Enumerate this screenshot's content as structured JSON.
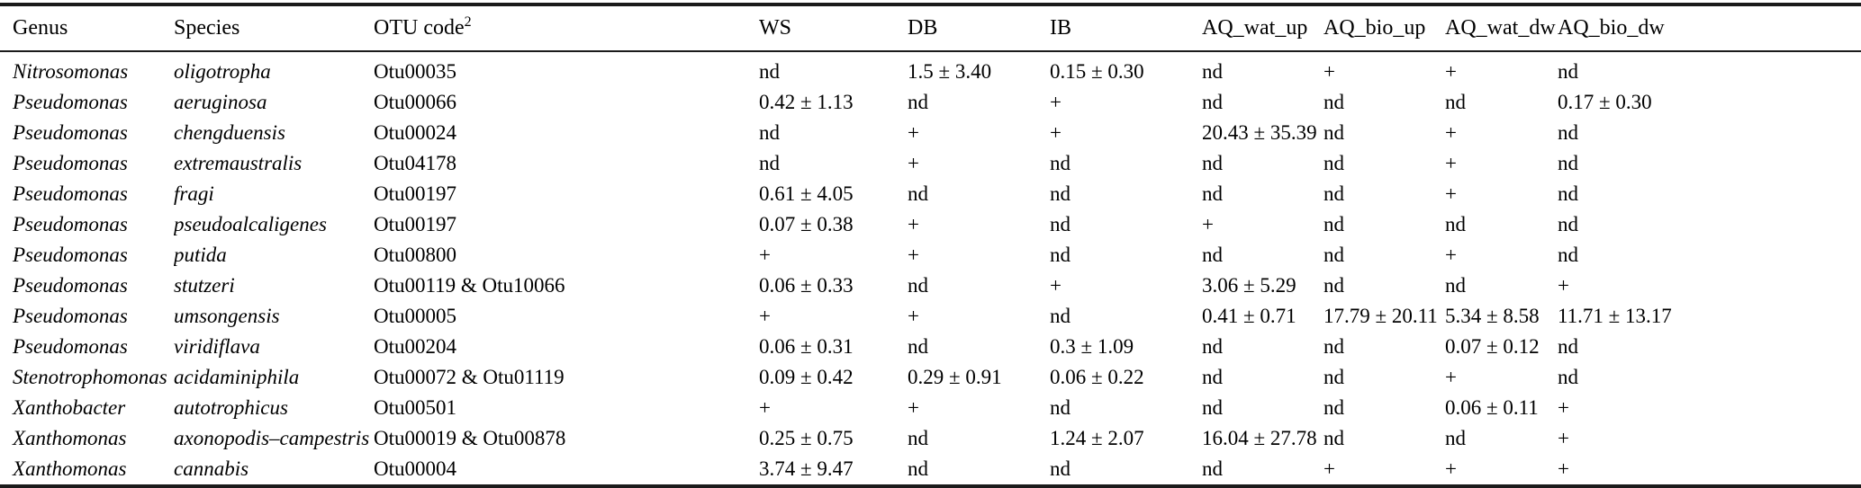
{
  "table": {
    "columns": [
      {
        "key": "genus",
        "label": "Genus",
        "sup": "",
        "italic": true
      },
      {
        "key": "species",
        "label": "Species",
        "sup": "",
        "italic": true
      },
      {
        "key": "otu",
        "label": "OTU code",
        "sup": "2",
        "italic": false
      },
      {
        "key": "ws",
        "label": "WS",
        "sup": "",
        "italic": false
      },
      {
        "key": "db",
        "label": "DB",
        "sup": "",
        "italic": false
      },
      {
        "key": "ib",
        "label": "IB",
        "sup": "",
        "italic": false
      },
      {
        "key": "aq_wat_up",
        "label": "AQ_wat_up",
        "sup": "",
        "italic": false
      },
      {
        "key": "aq_bio_up",
        "label": "AQ_bio_up",
        "sup": "",
        "italic": false
      },
      {
        "key": "aq_wat_dw",
        "label": "AQ_wat_dw",
        "sup": "",
        "italic": false
      },
      {
        "key": "aq_bio_dw",
        "label": "AQ_bio_dw",
        "sup": "",
        "italic": false
      }
    ],
    "rows": [
      {
        "genus": "Nitrosomonas",
        "species": "oligotropha",
        "otu": "Otu00035",
        "ws": "nd",
        "db": "1.5 ± 3.40",
        "ib": "0.15 ± 0.30",
        "aq_wat_up": "nd",
        "aq_bio_up": "+",
        "aq_wat_dw": "+",
        "aq_bio_dw": "nd"
      },
      {
        "genus": "Pseudomonas",
        "species": "aeruginosa",
        "otu": "Otu00066",
        "ws": "0.42 ± 1.13",
        "db": "nd",
        "ib": "+",
        "aq_wat_up": "nd",
        "aq_bio_up": "nd",
        "aq_wat_dw": "nd",
        "aq_bio_dw": "0.17 ± 0.30"
      },
      {
        "genus": "Pseudomonas",
        "species": "chengduensis",
        "otu": "Otu00024",
        "ws": "nd",
        "db": "+",
        "ib": "+",
        "aq_wat_up": "20.43 ± 35.39",
        "aq_bio_up": "nd",
        "aq_wat_dw": "+",
        "aq_bio_dw": "nd"
      },
      {
        "genus": "Pseudomonas",
        "species": "extremaustralis",
        "otu": "Otu04178",
        "ws": "nd",
        "db": "+",
        "ib": "nd",
        "aq_wat_up": "nd",
        "aq_bio_up": "nd",
        "aq_wat_dw": "+",
        "aq_bio_dw": "nd"
      },
      {
        "genus": "Pseudomonas",
        "species": "fragi",
        "otu": "Otu00197",
        "ws": "0.61 ± 4.05",
        "db": "nd",
        "ib": "nd",
        "aq_wat_up": "nd",
        "aq_bio_up": "nd",
        "aq_wat_dw": "+",
        "aq_bio_dw": "nd"
      },
      {
        "genus": "Pseudomonas",
        "species": "pseudoalcaligenes",
        "otu": "Otu00197",
        "ws": "0.07 ± 0.38",
        "db": "+",
        "ib": "nd",
        "aq_wat_up": "+",
        "aq_bio_up": "nd",
        "aq_wat_dw": "nd",
        "aq_bio_dw": "nd"
      },
      {
        "genus": "Pseudomonas",
        "species": "putida",
        "otu": "Otu00800",
        "ws": "+",
        "db": "+",
        "ib": "nd",
        "aq_wat_up": "nd",
        "aq_bio_up": "nd",
        "aq_wat_dw": "+",
        "aq_bio_dw": "nd"
      },
      {
        "genus": "Pseudomonas",
        "species": "stutzeri",
        "otu": "Otu00119 & Otu10066",
        "ws": "0.06 ± 0.33",
        "db": "nd",
        "ib": "+",
        "aq_wat_up": "3.06 ± 5.29",
        "aq_bio_up": "nd",
        "aq_wat_dw": "nd",
        "aq_bio_dw": "+"
      },
      {
        "genus": "Pseudomonas",
        "species": "umsongensis",
        "otu": "Otu00005",
        "ws": "+",
        "db": "+",
        "ib": "nd",
        "aq_wat_up": "0.41 ± 0.71",
        "aq_bio_up": "17.79 ± 20.11",
        "aq_wat_dw": "5.34 ± 8.58",
        "aq_bio_dw": "11.71 ± 13.17"
      },
      {
        "genus": "Pseudomonas",
        "species": "viridiflava",
        "otu": "Otu00204",
        "ws": "0.06 ± 0.31",
        "db": "nd",
        "ib": "0.3 ± 1.09",
        "aq_wat_up": "nd",
        "aq_bio_up": "nd",
        "aq_wat_dw": "0.07 ± 0.12",
        "aq_bio_dw": "nd"
      },
      {
        "genus": "Stenotrophomonas",
        "species": "acidaminiphila",
        "otu": "Otu00072 & Otu01119",
        "ws": "0.09 ± 0.42",
        "db": "0.29 ± 0.91",
        "ib": "0.06 ± 0.22",
        "aq_wat_up": "nd",
        "aq_bio_up": "nd",
        "aq_wat_dw": "+",
        "aq_bio_dw": "nd"
      },
      {
        "genus": "Xanthobacter",
        "species": "autotrophicus",
        "otu": "Otu00501",
        "ws": "+",
        "db": "+",
        "ib": "nd",
        "aq_wat_up": "nd",
        "aq_bio_up": "nd",
        "aq_wat_dw": "0.06 ± 0.11",
        "aq_bio_dw": "+"
      },
      {
        "genus": "Xanthomonas",
        "species": "axonopodis–campestris",
        "otu": "Otu00019 & Otu00878",
        "ws": "0.25 ± 0.75",
        "db": "nd",
        "ib": "1.24 ± 2.07",
        "aq_wat_up": "16.04 ± 27.78",
        "aq_bio_up": "nd",
        "aq_wat_dw": "nd",
        "aq_bio_dw": "+"
      },
      {
        "genus": "Xanthomonas",
        "species": "cannabis",
        "otu": "Otu00004",
        "ws": "3.74 ± 9.47",
        "db": "nd",
        "ib": "nd",
        "aq_wat_up": "nd",
        "aq_bio_up": "+",
        "aq_wat_dw": "+",
        "aq_bio_dw": "+"
      }
    ]
  }
}
